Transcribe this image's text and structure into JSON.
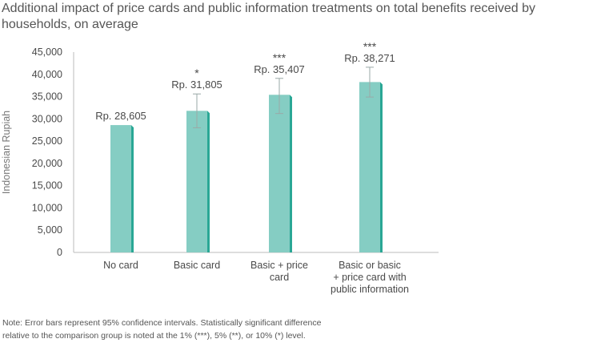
{
  "title": "Additional impact of price cards and public information treatments on total benefits received by households, on average",
  "note_lines": [
    "Note: Error bars represent 95% confidence intervals. Statistically significant difference",
    "relative to the comparison group is noted at the 1% (***), 5% (**), or 10% (*) level."
  ],
  "chart_data": {
    "type": "bar",
    "title": "Additional impact of price cards and public information treatments on total benefits received by households, on average",
    "ylabel": "Indonesian Rupiah",
    "xlabel": "",
    "ylim": [
      0,
      45000
    ],
    "yticks": [
      0,
      5000,
      10000,
      15000,
      20000,
      25000,
      30000,
      35000,
      40000,
      45000
    ],
    "ytick_labels": [
      "0",
      "5,000",
      "10,000",
      "15,000",
      "20,000",
      "25,000",
      "30,000",
      "35,000",
      "40,000",
      "45,000"
    ],
    "grid": false,
    "categories": [
      [
        "No card"
      ],
      [
        "Basic card"
      ],
      [
        "Basic + price",
        "card"
      ],
      [
        "Basic or basic",
        "+ price card with",
        "public information"
      ]
    ],
    "values": [
      28605,
      31805,
      35407,
      38271
    ],
    "data_labels": [
      "Rp. 28,605",
      "Rp. 31,805",
      "Rp. 35,407",
      "Rp. 38,271"
    ],
    "significance": [
      "",
      "*",
      "***",
      "***"
    ],
    "error_bars": [
      null,
      [
        28000,
        35600
      ],
      [
        31200,
        39100
      ],
      [
        34900,
        41600
      ]
    ],
    "colors": {
      "bar": "#85cdc3",
      "bar_edge": "#2aa795",
      "axis": "#bbbbbb",
      "error": "#9aa9a7"
    }
  }
}
